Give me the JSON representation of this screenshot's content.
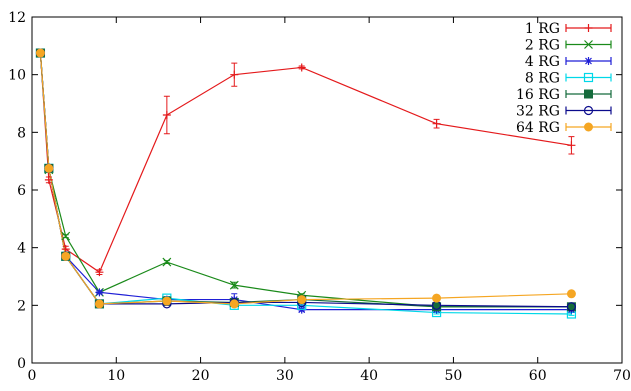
{
  "chart_data": {
    "type": "line",
    "title": "",
    "xlabel": "",
    "ylabel": "",
    "xlim": [
      0,
      70
    ],
    "ylim": [
      0,
      12
    ],
    "xticks": [
      0,
      10,
      20,
      30,
      40,
      50,
      60,
      70
    ],
    "yticks": [
      0,
      2,
      4,
      6,
      8,
      10,
      12
    ],
    "grid": false,
    "error_bars": true,
    "legend_position": "top-right",
    "series": [
      {
        "name": "1 RG",
        "color": "#e41a1c",
        "marker": "plus",
        "x": [
          1,
          2,
          4,
          8,
          16,
          24,
          32,
          48,
          64
        ],
        "y": [
          10.75,
          6.35,
          3.95,
          3.15,
          8.6,
          10.0,
          10.25,
          8.3,
          7.55
        ],
        "err": [
          0.05,
          0.1,
          0.1,
          0.08,
          0.65,
          0.4,
          0.05,
          0.15,
          0.3
        ]
      },
      {
        "name": "2 RG",
        "color": "#1a8a1a",
        "marker": "cross",
        "x": [
          1,
          2,
          4,
          8,
          16,
          24,
          32,
          48,
          64
        ],
        "y": [
          10.75,
          6.7,
          4.4,
          2.45,
          3.5,
          2.7,
          2.35,
          1.95,
          1.95
        ],
        "err": [
          0.05,
          0.05,
          0.05,
          0.05,
          0.05,
          0.1,
          0.05,
          0.05,
          0.05
        ]
      },
      {
        "name": "4 RG",
        "color": "#1f1fd6",
        "marker": "star",
        "x": [
          1,
          2,
          4,
          8,
          16,
          24,
          32,
          48,
          64
        ],
        "y": [
          10.75,
          6.75,
          3.7,
          2.45,
          2.2,
          2.2,
          1.85,
          1.85,
          1.85
        ],
        "err": [
          0.05,
          0.05,
          0.05,
          0.05,
          0.1,
          0.2,
          0.05,
          0.05,
          0.05
        ]
      },
      {
        "name": "8 RG",
        "color": "#00d8e8",
        "marker": "square-open",
        "x": [
          1,
          2,
          4,
          8,
          16,
          24,
          32,
          48,
          64
        ],
        "y": [
          10.75,
          6.75,
          3.7,
          2.05,
          2.25,
          2.0,
          2.0,
          1.75,
          1.7
        ],
        "err": [
          0.05,
          0.05,
          0.05,
          0.05,
          0.05,
          0.05,
          0.05,
          0.05,
          0.05
        ]
      },
      {
        "name": "16 RG",
        "color": "#156b3c",
        "marker": "square-filled",
        "x": [
          1,
          2,
          4,
          8,
          16,
          24,
          32,
          48,
          64
        ],
        "y": [
          10.75,
          6.75,
          3.7,
          2.05,
          2.15,
          2.1,
          2.2,
          1.95,
          1.95
        ],
        "err": [
          0.05,
          0.05,
          0.05,
          0.05,
          0.05,
          0.05,
          0.05,
          0.05,
          0.05
        ]
      },
      {
        "name": "32 RG",
        "color": "#0b0b8c",
        "marker": "circle-open",
        "x": [
          1,
          2,
          4,
          8,
          16,
          24,
          32,
          48,
          64
        ],
        "y": [
          10.75,
          6.75,
          3.7,
          2.05,
          2.05,
          2.1,
          2.1,
          2.0,
          1.95
        ],
        "err": [
          0.05,
          0.05,
          0.05,
          0.05,
          0.05,
          0.05,
          0.05,
          0.05,
          0.05
        ]
      },
      {
        "name": "64 RG",
        "color": "#f5a623",
        "marker": "circle-filled",
        "x": [
          1,
          2,
          4,
          8,
          16,
          24,
          32,
          48,
          64
        ],
        "y": [
          10.75,
          6.75,
          3.7,
          2.05,
          2.15,
          2.05,
          2.2,
          2.25,
          2.4
        ],
        "err": [
          0.05,
          0.05,
          0.05,
          0.05,
          0.05,
          0.05,
          0.05,
          0.1,
          0.05
        ]
      }
    ]
  }
}
